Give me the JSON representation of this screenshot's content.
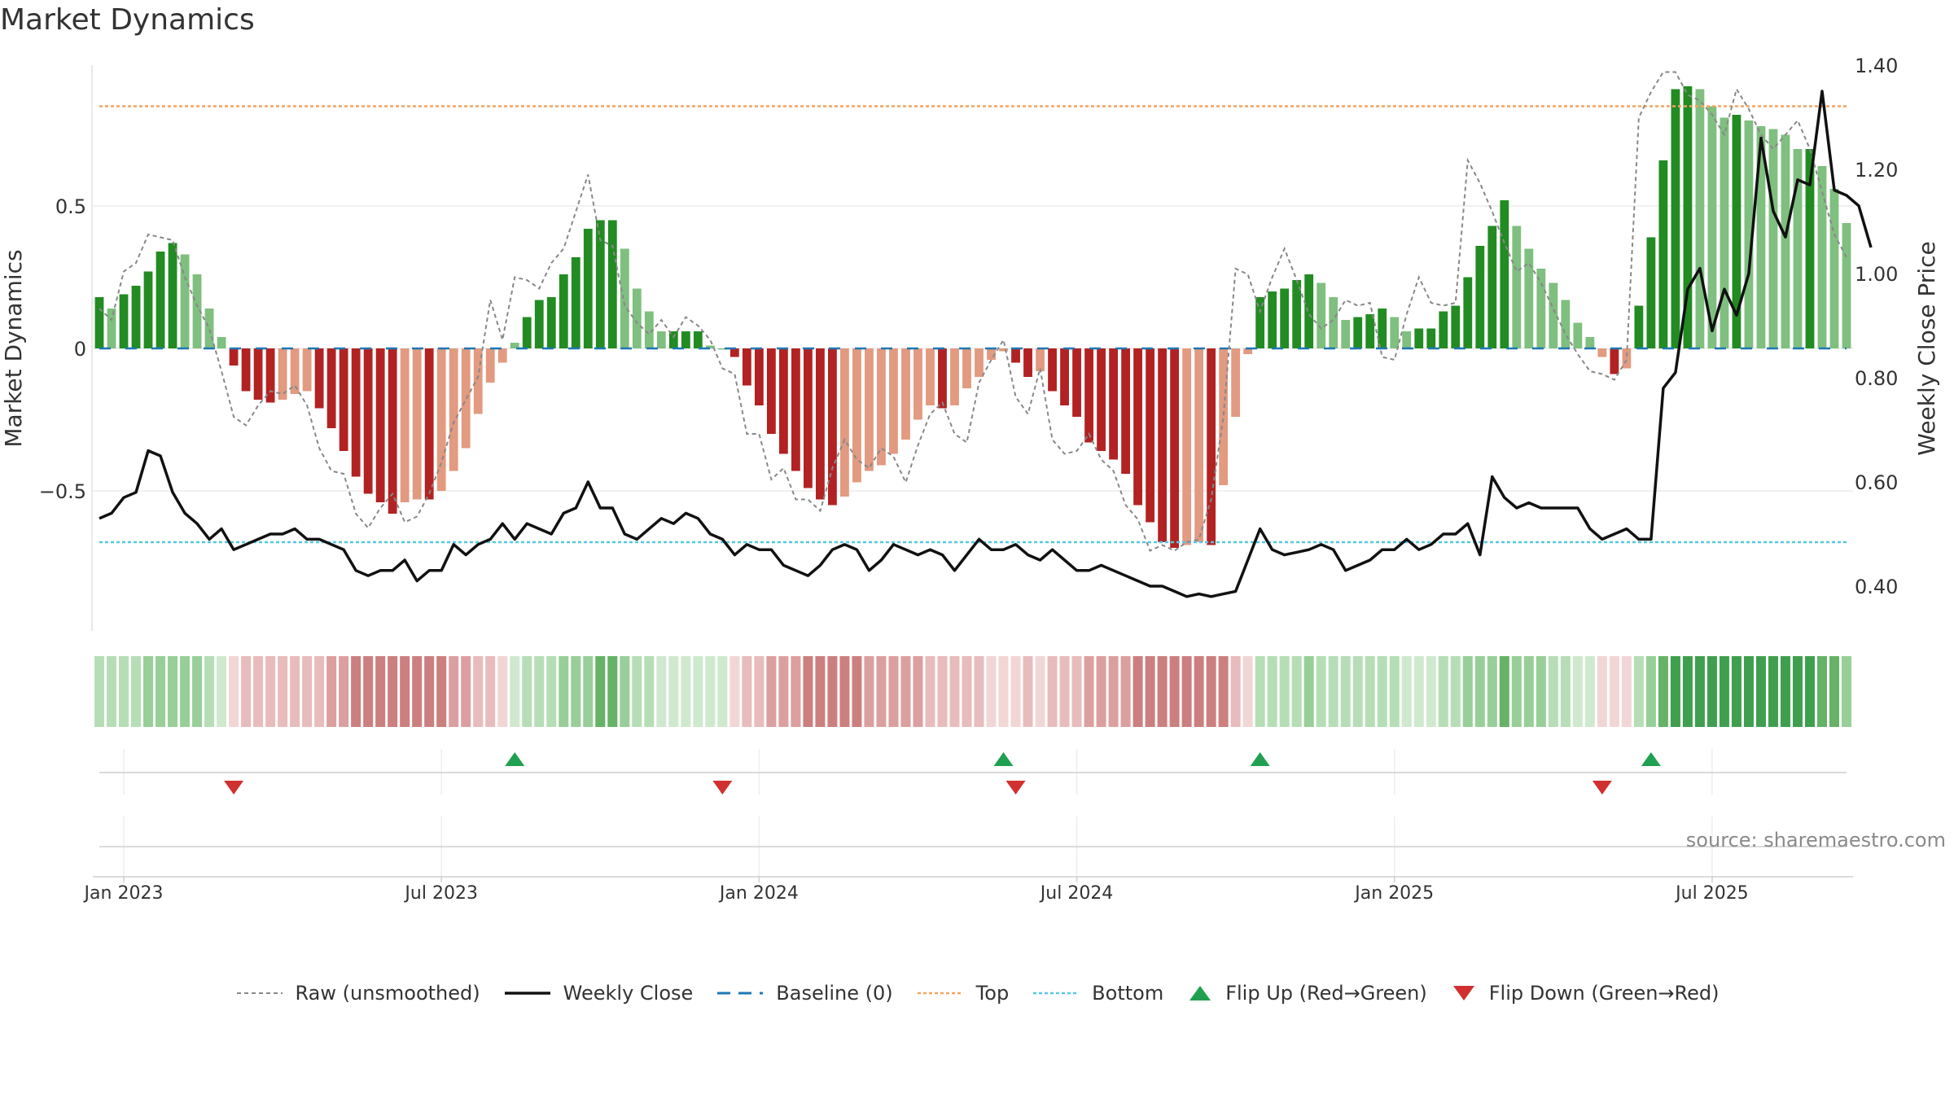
{
  "title": "Market Dynamics",
  "source_note": "source: sharemaestro.com",
  "colors": {
    "strong_up": "#228b22",
    "weak_up": "#7fbf7f",
    "strong_down": "#b22222",
    "weak_down": "#e29a80",
    "close": "#111111",
    "raw": "#888888",
    "baseline": "#1f77b4",
    "top": "#f4a460",
    "bottom": "#55c8e0",
    "flip_up": "#20a050",
    "flip_down": "#d03030"
  },
  "chart_data": {
    "type": "bar",
    "title": "Market Dynamics",
    "ylabel": "Market Dynamics",
    "y2label": "Weekly Close Price",
    "ylim": [
      -0.985,
      0.985
    ],
    "y2lim": [
      0.31,
      1.405
    ],
    "yticks": [
      {
        "value": 0.5,
        "label": "0.5"
      },
      {
        "value": 0,
        "label": "0"
      },
      {
        "value": -0.5,
        "label": "−0.5"
      }
    ],
    "y2ticks": [
      {
        "value": 1.4,
        "label": "1.40"
      },
      {
        "value": 1.2,
        "label": "1.20"
      },
      {
        "value": 1.0,
        "label": "1.00"
      },
      {
        "value": 0.8,
        "label": "0.80"
      },
      {
        "value": 0.6,
        "label": "0.60"
      },
      {
        "value": 0.4,
        "label": "0.40"
      }
    ],
    "xticks": [
      {
        "week": 2,
        "label": "Jan 2023"
      },
      {
        "week": 28,
        "label": "Jul 2023"
      },
      {
        "week": 54,
        "label": "Jan 2024"
      },
      {
        "week": 80,
        "label": "Jul 2024"
      },
      {
        "week": 106,
        "label": "Jan 2025"
      },
      {
        "week": 132,
        "label": "Jul 2025"
      }
    ],
    "top_line": 0.85,
    "bottom_line": -0.68,
    "flip_up_weeks": [
      34,
      74,
      95,
      127
    ],
    "flip_down_weeks": [
      11,
      51,
      75,
      123
    ],
    "series": [
      {
        "name": "Market Dynamics (smoothed)",
        "values": [
          0.18,
          0.14,
          0.19,
          0.22,
          0.27,
          0.34,
          0.37,
          0.33,
          0.26,
          0.14,
          0.04,
          -0.06,
          -0.15,
          -0.18,
          -0.19,
          -0.18,
          -0.16,
          -0.15,
          -0.21,
          -0.28,
          -0.36,
          -0.45,
          -0.51,
          -0.54,
          -0.58,
          -0.54,
          -0.53,
          -0.53,
          -0.5,
          -0.43,
          -0.35,
          -0.23,
          -0.12,
          -0.05,
          0.02,
          0.11,
          0.17,
          0.18,
          0.26,
          0.32,
          0.42,
          0.45,
          0.45,
          0.35,
          0.21,
          0.13,
          0.06,
          0.06,
          0.06,
          0.06,
          0.01,
          0.0,
          -0.03,
          -0.13,
          -0.2,
          -0.3,
          -0.37,
          -0.43,
          -0.49,
          -0.53,
          -0.55,
          -0.52,
          -0.47,
          -0.43,
          -0.41,
          -0.37,
          -0.32,
          -0.25,
          -0.2,
          -0.21,
          -0.2,
          -0.14,
          -0.1,
          -0.04,
          -0.01,
          -0.05,
          -0.1,
          -0.08,
          -0.15,
          -0.2,
          -0.24,
          -0.33,
          -0.36,
          -0.39,
          -0.44,
          -0.55,
          -0.61,
          -0.68,
          -0.7,
          -0.69,
          -0.68,
          -0.69,
          -0.48,
          -0.24,
          -0.02,
          0.18,
          0.2,
          0.21,
          0.24,
          0.26,
          0.23,
          0.18,
          0.1,
          0.11,
          0.12,
          0.14,
          0.11,
          0.06,
          0.07,
          0.07,
          0.13,
          0.15,
          0.25,
          0.36,
          0.43,
          0.52,
          0.43,
          0.35,
          0.28,
          0.23,
          0.17,
          0.09,
          0.04,
          -0.03,
          -0.09,
          -0.07,
          0.15,
          0.39,
          0.66,
          0.91,
          0.92,
          0.91,
          0.85,
          0.81,
          0.82,
          0.8,
          0.78,
          0.77,
          0.75,
          0.7,
          0.7,
          0.64,
          0.56,
          0.44
        ]
      },
      {
        "name": "Raw (unsmoothed)",
        "values": [
          0.14,
          0.1,
          0.27,
          0.3,
          0.4,
          0.39,
          0.38,
          0.25,
          0.15,
          0.07,
          -0.08,
          -0.24,
          -0.27,
          -0.2,
          -0.15,
          -0.16,
          -0.13,
          -0.2,
          -0.35,
          -0.43,
          -0.44,
          -0.58,
          -0.63,
          -0.56,
          -0.51,
          -0.61,
          -0.59,
          -0.51,
          -0.4,
          -0.26,
          -0.18,
          -0.1,
          0.17,
          0.03,
          0.25,
          0.24,
          0.21,
          0.3,
          0.35,
          0.48,
          0.61,
          0.38,
          0.36,
          0.15,
          0.09,
          0.05,
          0.1,
          0.04,
          0.11,
          0.08,
          0.03,
          -0.07,
          -0.09,
          -0.3,
          -0.3,
          -0.46,
          -0.42,
          -0.53,
          -0.53,
          -0.57,
          -0.42,
          -0.32,
          -0.39,
          -0.42,
          -0.35,
          -0.38,
          -0.47,
          -0.34,
          -0.23,
          -0.19,
          -0.3,
          -0.33,
          -0.12,
          -0.04,
          0.03,
          -0.17,
          -0.23,
          -0.07,
          -0.32,
          -0.37,
          -0.36,
          -0.3,
          -0.39,
          -0.43,
          -0.55,
          -0.6,
          -0.71,
          -0.69,
          -0.71,
          -0.68,
          -0.67,
          -0.53,
          -0.24,
          0.28,
          0.26,
          0.13,
          0.25,
          0.35,
          0.24,
          0.12,
          0.07,
          0.1,
          0.17,
          0.15,
          0.16,
          -0.03,
          -0.04,
          0.12,
          0.25,
          0.16,
          0.15,
          0.16,
          0.66,
          0.58,
          0.48,
          0.37,
          0.27,
          0.3,
          0.23,
          0.14,
          0.05,
          -0.02,
          -0.08,
          -0.09,
          -0.11,
          -0.04,
          0.81,
          0.9,
          0.97,
          0.97,
          0.89,
          0.87,
          0.82,
          0.75,
          0.91,
          0.84,
          0.75,
          0.7,
          0.75,
          0.8,
          0.7,
          0.55,
          0.4,
          0.32
        ]
      },
      {
        "name": "Weekly Close",
        "axis": "y2",
        "values": [
          0.53,
          0.54,
          0.57,
          0.58,
          0.66,
          0.65,
          0.58,
          0.54,
          0.52,
          0.49,
          0.51,
          0.47,
          0.48,
          0.49,
          0.5,
          0.5,
          0.51,
          0.49,
          0.49,
          0.48,
          0.47,
          0.43,
          0.42,
          0.43,
          0.43,
          0.45,
          0.41,
          0.43,
          0.43,
          0.48,
          0.46,
          0.48,
          0.49,
          0.52,
          0.49,
          0.52,
          0.51,
          0.5,
          0.54,
          0.55,
          0.6,
          0.55,
          0.55,
          0.5,
          0.49,
          0.51,
          0.53,
          0.52,
          0.54,
          0.53,
          0.5,
          0.49,
          0.46,
          0.48,
          0.47,
          0.47,
          0.44,
          0.43,
          0.42,
          0.44,
          0.47,
          0.48,
          0.47,
          0.43,
          0.45,
          0.48,
          0.47,
          0.46,
          0.47,
          0.46,
          0.43,
          0.46,
          0.49,
          0.47,
          0.47,
          0.48,
          0.46,
          0.45,
          0.47,
          0.45,
          0.43,
          0.43,
          0.44,
          0.43,
          0.42,
          0.41,
          0.4,
          0.4,
          0.39,
          0.38,
          0.385,
          0.38,
          0.385,
          0.39,
          0.45,
          0.51,
          0.47,
          0.46,
          0.465,
          0.47,
          0.48,
          0.47,
          0.43,
          0.44,
          0.45,
          0.47,
          0.47,
          0.49,
          0.47,
          0.48,
          0.5,
          0.5,
          0.52,
          0.46,
          0.61,
          0.57,
          0.55,
          0.56,
          0.55,
          0.55,
          0.55,
          0.55,
          0.51,
          0.49,
          0.5,
          0.51,
          0.49,
          0.49,
          0.78,
          0.81,
          0.97,
          1.01,
          0.89,
          0.97,
          0.92,
          1.0,
          1.26,
          1.12,
          1.07,
          1.18,
          1.17,
          1.35,
          1.16,
          1.15,
          1.13,
          1.05
        ]
      }
    ]
  },
  "legend": [
    {
      "key": "raw",
      "label": "Raw (unsmoothed)"
    },
    {
      "key": "close",
      "label": "Weekly Close"
    },
    {
      "key": "baseline",
      "label": "Baseline (0)"
    },
    {
      "key": "top",
      "label": "Top"
    },
    {
      "key": "bottom",
      "label": "Bottom"
    },
    {
      "key": "flip_up",
      "label": "Flip Up (Red→Green)"
    },
    {
      "key": "flip_down",
      "label": "Flip Down (Green→Red)"
    }
  ]
}
